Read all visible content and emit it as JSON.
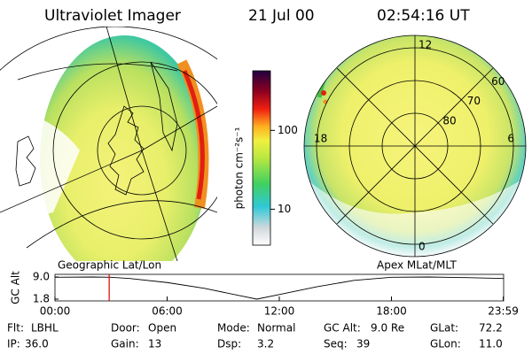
{
  "header": {
    "title": "Ultraviolet Imager",
    "date": "21 Jul 00",
    "time": "02:54:16 UT"
  },
  "left_map": {
    "label": "Geographic Lat/Lon"
  },
  "right_map": {
    "label": "Apex MLat/MLT",
    "lat_rings": [
      80,
      70,
      60
    ],
    "mlt_labels": [
      12,
      18,
      6,
      0
    ]
  },
  "colorbar": {
    "label": "photon cm⁻²s⁻¹",
    "lim": [
      3.5,
      570
    ],
    "ticks": [
      10,
      100
    ],
    "log": true
  },
  "timeline": {
    "ylabel": "GC Alt",
    "xlim": [
      0,
      24
    ],
    "ylim": [
      1.8,
      9.0
    ],
    "yticks": [
      {
        "value": 9.0,
        "label": "9.0"
      },
      1.8
    ],
    "xticks": [
      {
        "value": 0,
        "label": "00:00"
      },
      {
        "value": 6,
        "label": "06:00"
      },
      {
        "value": 12,
        "label": "12:00"
      },
      {
        "value": 18,
        "label": "18:00"
      },
      {
        "value": 23.98,
        "label": "23:59"
      }
    ],
    "x": [
      0,
      2,
      3,
      4,
      6,
      8,
      10,
      10.8,
      12,
      14,
      16,
      18,
      20,
      22,
      24
    ],
    "values": [
      8.9,
      9.0,
      8.9,
      8.5,
      7.2,
      5.3,
      2.8,
      1.8,
      3.3,
      5.8,
      7.9,
      8.9,
      9.0,
      8.8,
      8.5
    ],
    "current_time": 2.9,
    "marker_color": "#e00000"
  },
  "footer": {
    "rows": [
      [
        {
          "label": "Flt:",
          "value": "LBHL"
        },
        {
          "label": "Door:",
          "value": "Open"
        },
        {
          "label": "Mode:",
          "value": "Normal"
        },
        {
          "label": "GC Alt:",
          "value": "9.0 Re"
        },
        {
          "label": "GLat:",
          "value": "72.2"
        }
      ],
      [
        {
          "label": "IP:",
          "value": "36.0"
        },
        {
          "label": "Gain:",
          "value": "13"
        },
        {
          "label": "Dsp:",
          "value": "3.2"
        },
        {
          "label": "Seq:",
          "value": "39"
        },
        {
          "label": "GLon:",
          "value": "11.0"
        }
      ]
    ]
  }
}
